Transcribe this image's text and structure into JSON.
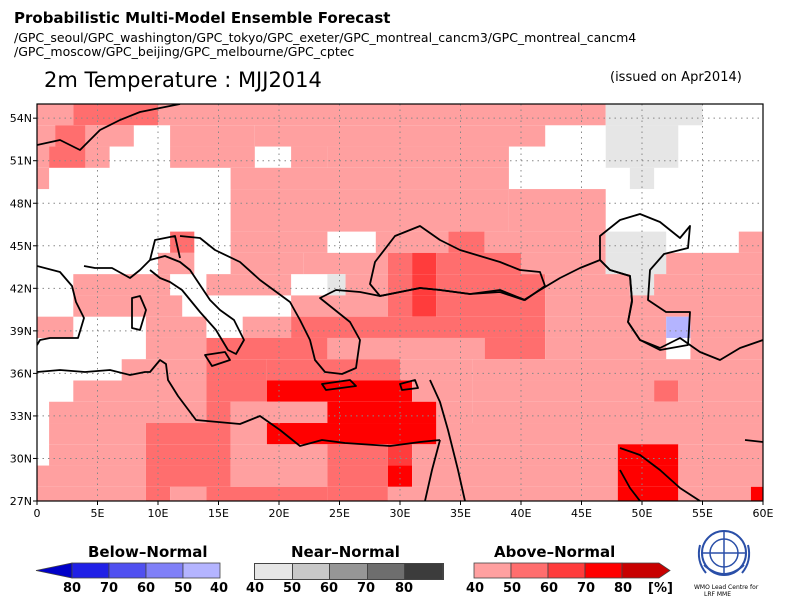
{
  "header": {
    "title": "Probabilistic Multi-Model Ensemble Forecast",
    "models_line1": "/GPC_seoul/GPC_washington/GPC_tokyo/GPC_exeter/GPC_montreal_cancm3/GPC_montreal_cancm4",
    "models_line2": "/GPC_moscow/GPC_beijing/GPC_melbourne/GPC_cptec",
    "variable_title": "2m Temperature : MJJ2014",
    "issued": "(issued on Apr2014)"
  },
  "map": {
    "lon_range": [
      0,
      60
    ],
    "lat_range": [
      27,
      55
    ],
    "lon_ticks": [
      "0",
      "5E",
      "10E",
      "15E",
      "20E",
      "25E",
      "30E",
      "35E",
      "40E",
      "45E",
      "50E",
      "55E",
      "60E"
    ],
    "lat_ticks": [
      "27N",
      "30N",
      "33N",
      "36N",
      "39N",
      "42N",
      "45N",
      "48N",
      "51N",
      "54N"
    ]
  },
  "legend": {
    "below": {
      "title": "Below–Normal",
      "labels": [
        "80",
        "70",
        "60",
        "50",
        "40"
      ],
      "colors": [
        "#0000c8",
        "#2020e6",
        "#5050f0",
        "#8080f8",
        "#b4b4ff"
      ]
    },
    "near": {
      "title": "Near–Normal",
      "labels": [
        "40",
        "50",
        "60",
        "70",
        "80"
      ],
      "colors": [
        "#e6e6e6",
        "#c8c8c8",
        "#969696",
        "#6e6e6e",
        "#3c3c3c"
      ]
    },
    "above": {
      "title": "Above–Normal",
      "labels": [
        "40",
        "50",
        "60",
        "70",
        "80",
        "[%]"
      ],
      "colors": [
        "#ffa0a0",
        "#ff6e6e",
        "#ff3c3c",
        "#ff0000",
        "#c80000"
      ]
    }
  },
  "logo": {
    "line1": "WMO Lead Centre for",
    "line2": "LRF MME"
  }
}
